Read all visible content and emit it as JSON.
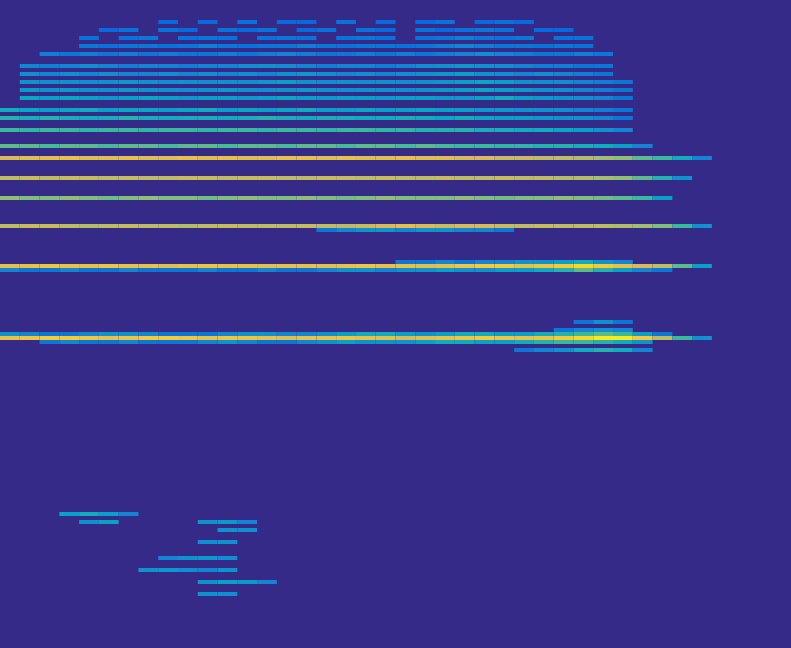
{
  "chart_data": {
    "type": "heatmap",
    "xlim": [
      0,
      40
    ],
    "ylim": [
      0,
      162
    ],
    "bin_size": [
      1,
      1
    ],
    "color_range": [
      0,
      1
    ],
    "tick_labels": false,
    "grid": false,
    "rows": [
      {
        "y": 77,
        "x": 0,
        "values": [
          0.8,
          0.82,
          0.85,
          0.85,
          0.83,
          0.8,
          0.82,
          0.85,
          0.85,
          0.83,
          0.8,
          0.82,
          0.82,
          0.8,
          0.78,
          0.8,
          0.8,
          0.82,
          0.8,
          0.78,
          0.75,
          0.78,
          0.8,
          0.82,
          0.85,
          0.82,
          0.8,
          0.82,
          0.85,
          0.9,
          0.95,
          0.95,
          0.85,
          0.7,
          0.5,
          0.3
        ]
      },
      {
        "y": 78,
        "x": 0,
        "values": [
          0.3,
          0.25,
          0.2,
          0.2,
          0.25,
          0.3,
          0.3,
          0.25,
          0.2,
          0.2,
          0.2,
          0.25,
          0.3,
          0.3,
          0.25,
          0.25,
          0.3,
          0.35,
          0.4,
          0.4,
          0.35,
          0.3,
          0.35,
          0.4,
          0.4,
          0.35,
          0.35,
          0.4,
          0.45,
          0.5,
          0.55,
          0.5,
          0.35,
          0.2
        ]
      },
      {
        "y": 76,
        "x": 2,
        "values": [
          0.2,
          0.25,
          0.2,
          0.2,
          0.25,
          0.2,
          0.2,
          0.2,
          0.25,
          0.3,
          0.25,
          0.2,
          0.2,
          0.25,
          0.3,
          0.35,
          0.3,
          0.3,
          0.3,
          0.35,
          0.4,
          0.4,
          0.35,
          0.35,
          0.4,
          0.45,
          0.5,
          0.5,
          0.45,
          0.4,
          0.3
        ]
      },
      {
        "y": 74,
        "x": 26,
        "values": [
          0.2,
          0.25,
          0.3,
          0.4,
          0.45,
          0.4,
          0.25
        ]
      },
      {
        "y": 79,
        "x": 28,
        "values": [
          0.2,
          0.25,
          0.3,
          0.25
        ]
      },
      {
        "y": 81,
        "x": 29,
        "values": [
          0.2,
          0.3,
          0.2
        ]
      },
      {
        "y": 95,
        "x": 0,
        "values": [
          0.78,
          0.8,
          0.82,
          0.8,
          0.8,
          0.82,
          0.8,
          0.8,
          0.78,
          0.8,
          0.82,
          0.8,
          0.8,
          0.78,
          0.8,
          0.8,
          0.78,
          0.8,
          0.82,
          0.8,
          0.8,
          0.78,
          0.8,
          0.82,
          0.85,
          0.85,
          0.8,
          0.82,
          0.85,
          0.9,
          0.85,
          0.8,
          0.75,
          0.7,
          0.55,
          0.35
        ]
      },
      {
        "y": 94,
        "x": 0,
        "values": [
          0.25,
          0.2,
          0.2,
          0.25,
          0.2,
          0.2,
          0.25,
          0.2,
          0.2,
          0.2,
          0.25,
          0.2,
          0.2,
          0.25,
          0.2,
          0.2,
          0.25,
          0.3,
          0.3,
          0.25,
          0.3,
          0.3,
          0.35,
          0.3,
          0.3,
          0.35,
          0.35,
          0.4,
          0.45,
          0.55,
          0.45,
          0.35,
          0.25,
          0.2
        ]
      },
      {
        "y": 96,
        "x": 20,
        "values": [
          0.2,
          0.2,
          0.25,
          0.2,
          0.25,
          0.25,
          0.3,
          0.3,
          0.35,
          0.4,
          0.3,
          0.25
        ]
      },
      {
        "y": 105,
        "x": 0,
        "values": [
          0.7,
          0.72,
          0.72,
          0.7,
          0.68,
          0.7,
          0.72,
          0.7,
          0.7,
          0.68,
          0.7,
          0.72,
          0.7,
          0.7,
          0.7,
          0.72,
          0.7,
          0.7,
          0.72,
          0.75,
          0.78,
          0.75,
          0.72,
          0.75,
          0.75,
          0.72,
          0.7,
          0.72,
          0.7,
          0.7,
          0.7,
          0.68,
          0.65,
          0.6,
          0.5,
          0.3
        ]
      },
      {
        "y": 104,
        "x": 16,
        "values": [
          0.2,
          0.25,
          0.3,
          0.3,
          0.25,
          0.3,
          0.3,
          0.25,
          0.25,
          0.2
        ]
      },
      {
        "y": 112,
        "x": 0,
        "values": [
          0.62,
          0.6,
          0.6,
          0.62,
          0.6,
          0.58,
          0.6,
          0.62,
          0.6,
          0.6,
          0.58,
          0.6,
          0.62,
          0.6,
          0.6,
          0.62,
          0.6,
          0.58,
          0.6,
          0.62,
          0.6,
          0.6,
          0.6,
          0.62,
          0.6,
          0.58,
          0.6,
          0.6,
          0.62,
          0.6,
          0.58,
          0.55,
          0.5,
          0.35
        ]
      },
      {
        "y": 117,
        "x": 0,
        "values": [
          0.7,
          0.72,
          0.7,
          0.72,
          0.72,
          0.7,
          0.72,
          0.7,
          0.7,
          0.72,
          0.72,
          0.7,
          0.72,
          0.72,
          0.7,
          0.7,
          0.72,
          0.72,
          0.7,
          0.72,
          0.7,
          0.7,
          0.72,
          0.7,
          0.7,
          0.72,
          0.7,
          0.7,
          0.68,
          0.68,
          0.65,
          0.62,
          0.55,
          0.45,
          0.3
        ]
      },
      {
        "y": 122,
        "x": 0,
        "values": [
          0.75,
          0.78,
          0.78,
          0.8,
          0.78,
          0.78,
          0.8,
          0.78,
          0.78,
          0.8,
          0.78,
          0.8,
          0.78,
          0.78,
          0.8,
          0.8,
          0.78,
          0.8,
          0.78,
          0.78,
          0.8,
          0.78,
          0.78,
          0.75,
          0.75,
          0.72,
          0.72,
          0.7,
          0.7,
          0.68,
          0.65,
          0.62,
          0.55,
          0.5,
          0.4,
          0.25
        ]
      },
      {
        "y": 125,
        "x": 0,
        "values": [
          0.55,
          0.55,
          0.52,
          0.55,
          0.55,
          0.52,
          0.55,
          0.55,
          0.52,
          0.55,
          0.55,
          0.52,
          0.55,
          0.55,
          0.52,
          0.55,
          0.55,
          0.52,
          0.55,
          0.55,
          0.52,
          0.55,
          0.52,
          0.5,
          0.5,
          0.48,
          0.48,
          0.45,
          0.45,
          0.42,
          0.4,
          0.35,
          0.25
        ]
      },
      {
        "y": 129,
        "x": 0,
        "values": [
          0.5,
          0.48,
          0.5,
          0.5,
          0.48,
          0.5,
          0.5,
          0.48,
          0.5,
          0.5,
          0.48,
          0.5,
          0.5,
          0.48,
          0.5,
          0.5,
          0.48,
          0.5,
          0.5,
          0.48,
          0.48,
          0.45,
          0.45,
          0.45,
          0.42,
          0.42,
          0.4,
          0.4,
          0.38,
          0.35,
          0.3,
          0.25
        ]
      },
      {
        "y": 132,
        "x": 0,
        "values": [
          0.45,
          0.42,
          0.45,
          0.42,
          0.4,
          0.42,
          0.45,
          0.42,
          0.4,
          0.42,
          0.42,
          0.4,
          0.42,
          0.45,
          0.42,
          0.4,
          0.42,
          0.42,
          0.4,
          0.4,
          0.42,
          0.4,
          0.38,
          0.4,
          0.38,
          0.35,
          0.35,
          0.32,
          0.3,
          0.3,
          0.25,
          0.2
        ]
      },
      {
        "y": 134,
        "x": 0,
        "values": [
          0.4,
          0.38,
          0.35,
          0.38,
          0.4,
          0.35,
          0.38,
          0.38,
          0.35,
          0.38,
          0.4,
          0.35,
          0.38,
          0.35,
          0.38,
          0.4,
          0.35,
          0.35,
          0.38,
          0.35,
          0.35,
          0.38,
          0.35,
          0.35,
          0.32,
          0.32,
          0.3,
          0.3,
          0.28,
          0.25,
          0.22,
          0.2
        ]
      },
      {
        "y": 137,
        "x": 1,
        "values": [
          0.38,
          0.35,
          0.38,
          0.35,
          0.32,
          0.35,
          0.38,
          0.35,
          0.32,
          0.35,
          0.35,
          0.32,
          0.35,
          0.38,
          0.35,
          0.32,
          0.35,
          0.35,
          0.32,
          0.35,
          0.35,
          0.32,
          0.32,
          0.35,
          0.4,
          0.35,
          0.32,
          0.3,
          0.28,
          0.25,
          0.2
        ]
      },
      {
        "y": 139,
        "x": 1,
        "values": [
          0.32,
          0.3,
          0.32,
          0.3,
          0.28,
          0.32,
          0.3,
          0.3,
          0.28,
          0.3,
          0.32,
          0.3,
          0.28,
          0.3,
          0.32,
          0.3,
          0.28,
          0.3,
          0.3,
          0.28,
          0.3,
          0.32,
          0.35,
          0.38,
          0.35,
          0.32,
          0.3,
          0.28,
          0.25,
          0.22,
          0.2
        ]
      },
      {
        "y": 141,
        "x": 1,
        "values": [
          0.3,
          0.28,
          0.3,
          0.28,
          0.3,
          0.32,
          0.3,
          0.28,
          0.3,
          0.28,
          0.3,
          0.3,
          0.32,
          0.35,
          0.3,
          0.28,
          0.3,
          0.28,
          0.3,
          0.28,
          0.3,
          0.32,
          0.35,
          0.38,
          0.35,
          0.3,
          0.28,
          0.28,
          0.25,
          0.22,
          0.2
        ]
      },
      {
        "y": 143,
        "x": 1,
        "values": [
          0.28,
          0.25,
          0.28,
          0.25,
          0.28,
          0.25,
          0.25,
          0.28,
          0.25,
          0.28,
          0.25,
          0.28,
          0.25,
          0.3,
          0.32,
          0.28,
          0.25,
          0.28,
          0.25,
          0.28,
          0.3,
          0.32,
          0.35,
          0.3,
          0.28,
          0.25,
          0.28,
          0.25,
          0.22,
          0.2
        ]
      },
      {
        "y": 145,
        "x": 1,
        "values": [
          0.25,
          0.22,
          0.25,
          0.28,
          0.25,
          0.22,
          0.25,
          0.25,
          0.22,
          0.25,
          0.25,
          0.28,
          0.3,
          0.28,
          0.25,
          0.22,
          0.25,
          0.25,
          0.22,
          0.25,
          0.28,
          0.3,
          0.32,
          0.3,
          0.28,
          0.25,
          0.22,
          0.22,
          0.2,
          0.2
        ]
      },
      {
        "y": 148,
        "x": 2,
        "values": [
          0.22,
          0.2,
          0.22,
          0.2,
          0.22,
          0.2,
          0.22,
          0.2,
          0.2,
          0.22,
          0.2,
          0.22,
          0.25,
          0.22,
          0.2,
          0.2,
          0.22,
          0.2,
          0.22,
          0.2,
          0.22,
          0.25,
          0.28,
          0.25,
          0.22,
          0.2,
          0.2,
          0.22,
          0.2
        ]
      },
      {
        "y": 150,
        "x": 4,
        "values": [
          0.2,
          0.18,
          0.2,
          0.2,
          0.18,
          0.2,
          0.22,
          0.2,
          0.18,
          0.2,
          0.2,
          0.22,
          0.2,
          0.18,
          0.2,
          0.2,
          0.18,
          0.2,
          0.22,
          0.25,
          0.22,
          0.2,
          0.2,
          0.18,
          0.2,
          0.18
        ]
      },
      {
        "y": 152,
        "x": 4,
        "values": [
          0.18,
          null,
          0.18,
          0.2,
          null,
          0.18,
          0.2,
          0.18,
          null,
          0.18,
          0.2,
          0.18,
          null,
          0.18,
          0.2,
          0.18,
          null,
          0.18,
          0.2,
          0.22,
          0.2,
          0.18,
          0.2,
          null,
          0.18,
          0.18
        ]
      },
      {
        "y": 154,
        "x": 5,
        "values": [
          0.15,
          0.18,
          null,
          0.18,
          0.15,
          null,
          0.18,
          0.15,
          0.18,
          null,
          0.15,
          0.18,
          null,
          0.18,
          0.15,
          null,
          0.18,
          0.15,
          0.18,
          0.2,
          0.18,
          null,
          0.15,
          0.15
        ]
      },
      {
        "y": 156,
        "x": 8,
        "values": [
          0.15,
          null,
          0.15,
          null,
          0.18,
          null,
          0.15,
          0.15,
          null,
          0.18,
          null,
          0.15,
          null,
          0.15,
          0.18,
          null,
          0.15,
          0.18,
          0.15,
          null
        ]
      },
      {
        "y": 33,
        "x": 3,
        "values": [
          0.35,
          0.4,
          0.35,
          0.25
        ]
      },
      {
        "y": 31,
        "x": 4,
        "values": [
          0.3,
          0.35
        ]
      },
      {
        "y": 31,
        "x": 10,
        "values": [
          0.3,
          0.32,
          0.25
        ]
      },
      {
        "y": 29,
        "x": 11,
        "values": [
          0.3,
          0.28
        ]
      },
      {
        "y": 26,
        "x": 10,
        "values": [
          0.28,
          0.3
        ]
      },
      {
        "y": 22,
        "x": 8,
        "values": [
          0.25,
          0.3,
          0.32,
          0.28
        ]
      },
      {
        "y": 19,
        "x": 7,
        "values": [
          0.3,
          0.32,
          0.28,
          0.25,
          0.3
        ]
      },
      {
        "y": 16,
        "x": 10,
        "values": [
          0.3,
          0.35,
          0.32,
          0.25
        ]
      },
      {
        "y": 13,
        "x": 10,
        "values": [
          0.3,
          0.28
        ]
      }
    ]
  }
}
